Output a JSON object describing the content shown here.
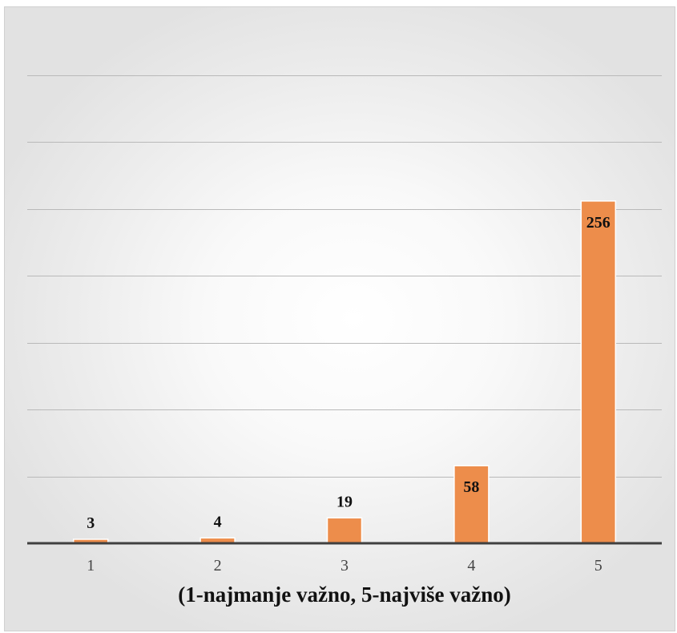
{
  "chart_data": {
    "type": "bar",
    "categories": [
      "1",
      "2",
      "3",
      "4",
      "5"
    ],
    "values": [
      3,
      4,
      19,
      58,
      256
    ],
    "data_labels": [
      "3",
      "4",
      "19",
      "58",
      "256"
    ],
    "title": "",
    "xlabel": "(1-najmanje važno, 5-najviše važno)",
    "ylabel": "",
    "ylim": [
      0,
      350
    ],
    "grid": true,
    "bar_color": "#ED8D4B",
    "legend": "none"
  }
}
